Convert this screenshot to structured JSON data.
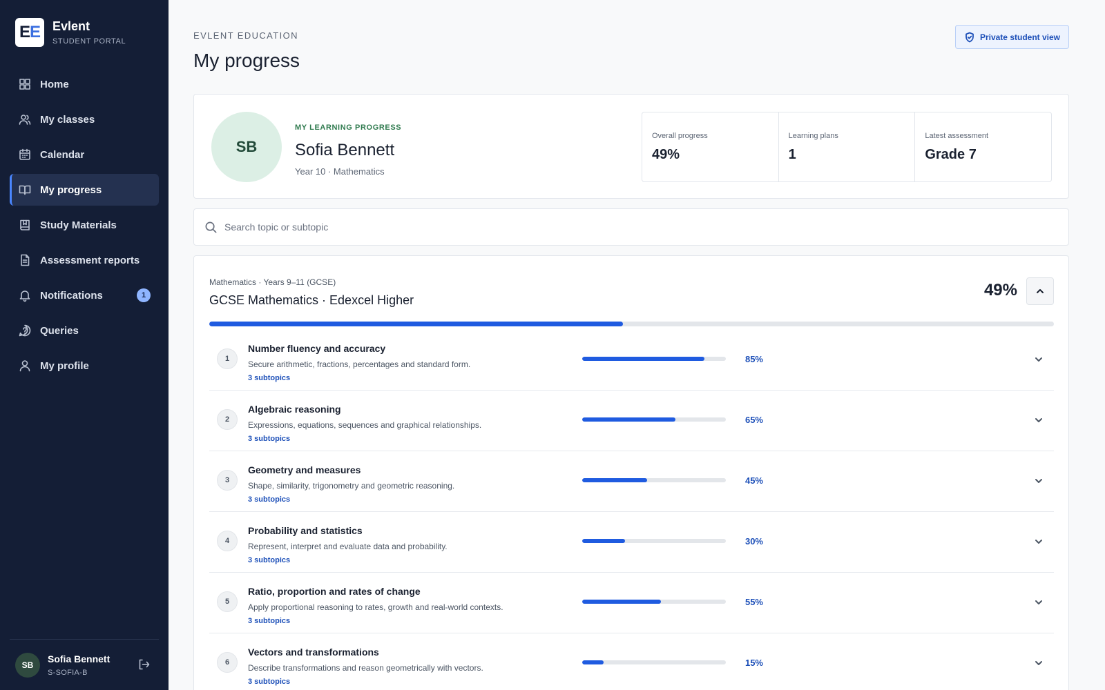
{
  "brand": {
    "logo_text": "EE",
    "name": "Evlent",
    "subtitle": "STUDENT PORTAL"
  },
  "sidebar": {
    "items": [
      {
        "label": "Home",
        "icon": "grid-icon",
        "active": false
      },
      {
        "label": "My classes",
        "icon": "users-icon",
        "active": false
      },
      {
        "label": "Calendar",
        "icon": "calendar-icon",
        "active": false
      },
      {
        "label": "My progress",
        "icon": "book-open-icon",
        "active": true
      },
      {
        "label": "Study Materials",
        "icon": "bookmark-book-icon",
        "active": false
      },
      {
        "label": "Assessment reports",
        "icon": "file-text-icon",
        "active": false
      },
      {
        "label": "Notifications",
        "icon": "bell-icon",
        "active": false,
        "badge": "1"
      },
      {
        "label": "Queries",
        "icon": "help-circle-icon",
        "active": false
      },
      {
        "label": "My profile",
        "icon": "user-icon",
        "active": false
      }
    ],
    "user": {
      "initials": "SB",
      "name": "Sofia Bennett",
      "id": "S-SOFIA-B"
    }
  },
  "header": {
    "eyebrow": "EVLENT EDUCATION",
    "title": "My progress",
    "private_button": "Private student view"
  },
  "profile": {
    "initials": "SB",
    "eyebrow": "MY LEARNING PROGRESS",
    "name": "Sofia Bennett",
    "meta": "Year 10 · Mathematics",
    "stats": [
      {
        "label": "Overall progress",
        "value": "49%"
      },
      {
        "label": "Learning plans",
        "value": "1"
      },
      {
        "label": "Latest assessment",
        "value": "Grade 7"
      }
    ]
  },
  "search": {
    "placeholder": "Search topic or subtopic",
    "value": ""
  },
  "course": {
    "subtitle": "Mathematics · Years 9–11 (GCSE)",
    "title": "GCSE Mathematics · Edexcel Higher",
    "percent_label": "49%",
    "progress": 49,
    "topics": [
      {
        "num": "1",
        "title": "Number fluency and accuracy",
        "desc": "Secure arithmetic, fractions, percentages and standard form.",
        "subtopics": "3 subtopics",
        "pct_label": "85%",
        "progress": 85
      },
      {
        "num": "2",
        "title": "Algebraic reasoning",
        "desc": "Expressions, equations, sequences and graphical relationships.",
        "subtopics": "3 subtopics",
        "pct_label": "65%",
        "progress": 65
      },
      {
        "num": "3",
        "title": "Geometry and measures",
        "desc": "Shape, similarity, trigonometry and geometric reasoning.",
        "subtopics": "3 subtopics",
        "pct_label": "45%",
        "progress": 45
      },
      {
        "num": "4",
        "title": "Probability and statistics",
        "desc": "Represent, interpret and evaluate data and probability.",
        "subtopics": "3 subtopics",
        "pct_label": "30%",
        "progress": 30
      },
      {
        "num": "5",
        "title": "Ratio, proportion and rates of change",
        "desc": "Apply proportional reasoning to rates, growth and real-world contexts.",
        "subtopics": "3 subtopics",
        "pct_label": "55%",
        "progress": 55
      },
      {
        "num": "6",
        "title": "Vectors and transformations",
        "desc": "Describe transformations and reason geometrically with vectors.",
        "subtopics": "3 subtopics",
        "pct_label": "15%",
        "progress": 15
      }
    ]
  },
  "colors": {
    "sidebar_bg": "#141e36",
    "accent": "#1f5be0",
    "accent_text": "#1c4fb8",
    "green_label": "#2f7a4e"
  }
}
